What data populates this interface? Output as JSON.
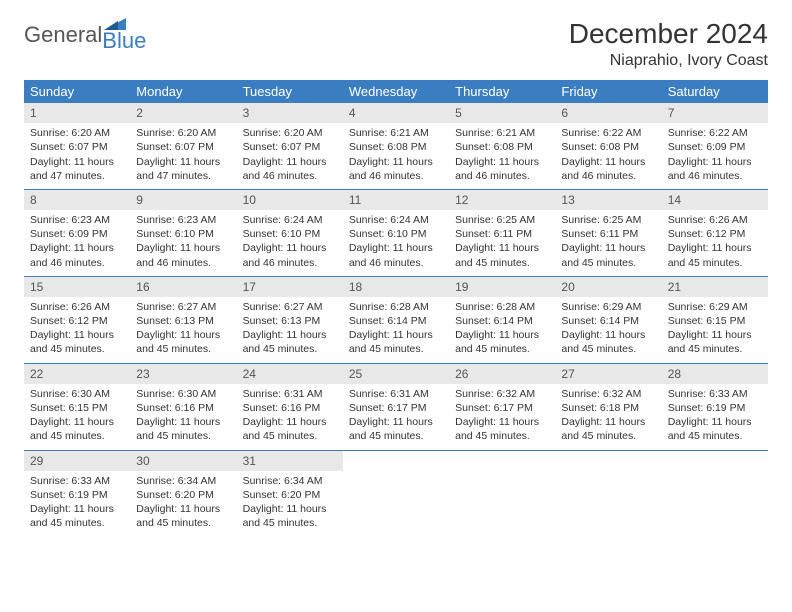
{
  "logo": {
    "text1": "General",
    "text2": "Blue"
  },
  "title": "December 2024",
  "location": "Niaprahio, Ivory Coast",
  "colors": {
    "header_bg": "#3a7ec1",
    "header_fg": "#ffffff",
    "daynum_bg": "#e8e8e8",
    "rule": "#3a7ec1"
  },
  "weekdays": [
    "Sunday",
    "Monday",
    "Tuesday",
    "Wednesday",
    "Thursday",
    "Friday",
    "Saturday"
  ],
  "weeks": [
    [
      {
        "n": "1",
        "sr": "6:20 AM",
        "ss": "6:07 PM",
        "dl": "11 hours and 47 minutes."
      },
      {
        "n": "2",
        "sr": "6:20 AM",
        "ss": "6:07 PM",
        "dl": "11 hours and 47 minutes."
      },
      {
        "n": "3",
        "sr": "6:20 AM",
        "ss": "6:07 PM",
        "dl": "11 hours and 46 minutes."
      },
      {
        "n": "4",
        "sr": "6:21 AM",
        "ss": "6:08 PM",
        "dl": "11 hours and 46 minutes."
      },
      {
        "n": "5",
        "sr": "6:21 AM",
        "ss": "6:08 PM",
        "dl": "11 hours and 46 minutes."
      },
      {
        "n": "6",
        "sr": "6:22 AM",
        "ss": "6:08 PM",
        "dl": "11 hours and 46 minutes."
      },
      {
        "n": "7",
        "sr": "6:22 AM",
        "ss": "6:09 PM",
        "dl": "11 hours and 46 minutes."
      }
    ],
    [
      {
        "n": "8",
        "sr": "6:23 AM",
        "ss": "6:09 PM",
        "dl": "11 hours and 46 minutes."
      },
      {
        "n": "9",
        "sr": "6:23 AM",
        "ss": "6:10 PM",
        "dl": "11 hours and 46 minutes."
      },
      {
        "n": "10",
        "sr": "6:24 AM",
        "ss": "6:10 PM",
        "dl": "11 hours and 46 minutes."
      },
      {
        "n": "11",
        "sr": "6:24 AM",
        "ss": "6:10 PM",
        "dl": "11 hours and 46 minutes."
      },
      {
        "n": "12",
        "sr": "6:25 AM",
        "ss": "6:11 PM",
        "dl": "11 hours and 45 minutes."
      },
      {
        "n": "13",
        "sr": "6:25 AM",
        "ss": "6:11 PM",
        "dl": "11 hours and 45 minutes."
      },
      {
        "n": "14",
        "sr": "6:26 AM",
        "ss": "6:12 PM",
        "dl": "11 hours and 45 minutes."
      }
    ],
    [
      {
        "n": "15",
        "sr": "6:26 AM",
        "ss": "6:12 PM",
        "dl": "11 hours and 45 minutes."
      },
      {
        "n": "16",
        "sr": "6:27 AM",
        "ss": "6:13 PM",
        "dl": "11 hours and 45 minutes."
      },
      {
        "n": "17",
        "sr": "6:27 AM",
        "ss": "6:13 PM",
        "dl": "11 hours and 45 minutes."
      },
      {
        "n": "18",
        "sr": "6:28 AM",
        "ss": "6:14 PM",
        "dl": "11 hours and 45 minutes."
      },
      {
        "n": "19",
        "sr": "6:28 AM",
        "ss": "6:14 PM",
        "dl": "11 hours and 45 minutes."
      },
      {
        "n": "20",
        "sr": "6:29 AM",
        "ss": "6:14 PM",
        "dl": "11 hours and 45 minutes."
      },
      {
        "n": "21",
        "sr": "6:29 AM",
        "ss": "6:15 PM",
        "dl": "11 hours and 45 minutes."
      }
    ],
    [
      {
        "n": "22",
        "sr": "6:30 AM",
        "ss": "6:15 PM",
        "dl": "11 hours and 45 minutes."
      },
      {
        "n": "23",
        "sr": "6:30 AM",
        "ss": "6:16 PM",
        "dl": "11 hours and 45 minutes."
      },
      {
        "n": "24",
        "sr": "6:31 AM",
        "ss": "6:16 PM",
        "dl": "11 hours and 45 minutes."
      },
      {
        "n": "25",
        "sr": "6:31 AM",
        "ss": "6:17 PM",
        "dl": "11 hours and 45 minutes."
      },
      {
        "n": "26",
        "sr": "6:32 AM",
        "ss": "6:17 PM",
        "dl": "11 hours and 45 minutes."
      },
      {
        "n": "27",
        "sr": "6:32 AM",
        "ss": "6:18 PM",
        "dl": "11 hours and 45 minutes."
      },
      {
        "n": "28",
        "sr": "6:33 AM",
        "ss": "6:19 PM",
        "dl": "11 hours and 45 minutes."
      }
    ],
    [
      {
        "n": "29",
        "sr": "6:33 AM",
        "ss": "6:19 PM",
        "dl": "11 hours and 45 minutes."
      },
      {
        "n": "30",
        "sr": "6:34 AM",
        "ss": "6:20 PM",
        "dl": "11 hours and 45 minutes."
      },
      {
        "n": "31",
        "sr": "6:34 AM",
        "ss": "6:20 PM",
        "dl": "11 hours and 45 minutes."
      },
      null,
      null,
      null,
      null
    ]
  ],
  "labels": {
    "sunrise": "Sunrise: ",
    "sunset": "Sunset: ",
    "daylight": "Daylight: "
  }
}
